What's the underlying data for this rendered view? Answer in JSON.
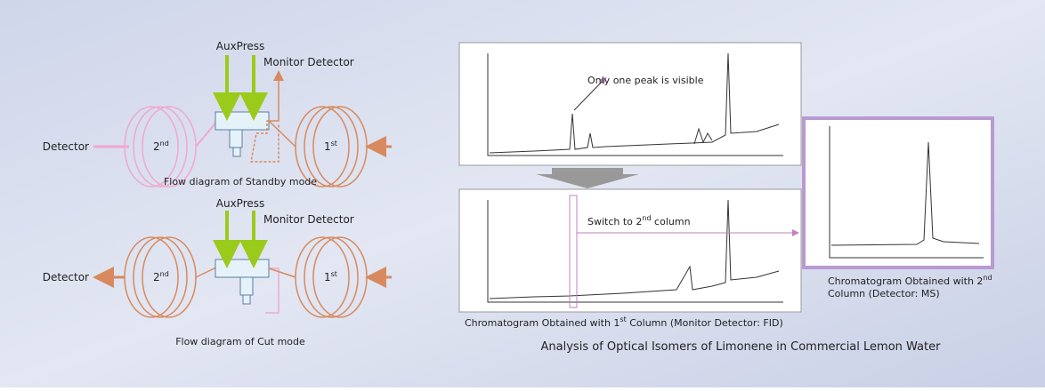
{
  "standby": {
    "auxpress": "AuxPress",
    "monitor": "Monitor Detector",
    "detector": "Detector",
    "second": {
      "base": "2",
      "sup": "nd"
    },
    "first": {
      "base": "1",
      "sup": "st"
    },
    "caption": "Flow diagram of Standby mode"
  },
  "cut": {
    "auxpress": "AuxPress",
    "monitor": "Monitor Detector",
    "detector": "Detector",
    "second": {
      "base": "2",
      "sup": "nd"
    },
    "first": {
      "base": "1",
      "sup": "st"
    },
    "caption": "Flow diagram of Cut mode"
  },
  "annotation": "Only one peak is visible",
  "switch": {
    "pre": "Switch to 2",
    "sup": "nd",
    "post": " column"
  },
  "caption_first": {
    "pre": "Chromatogram Obtained with 1",
    "sup": "st",
    "post": " Column (Monitor Detector: FID)"
  },
  "caption_second": {
    "pre": "Chromatogram Obtained with 2",
    "sup": "nd",
    "line2": "Column (Detector: MS)"
  },
  "title": "Analysis of Optical Isomers of Limonene in Commercial Lemon Water"
}
